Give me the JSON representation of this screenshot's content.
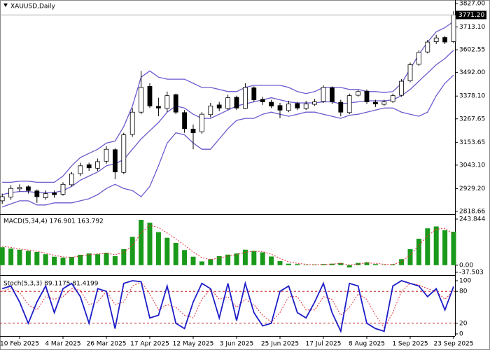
{
  "chart_data": [
    {
      "type": "candlestick",
      "title": "XAUUSD,Daily",
      "categories": [
        null,
        null,
        "10 Feb 2025",
        null,
        null,
        null,
        null,
        "4 Mar 2025",
        null,
        null,
        null,
        null,
        "26 Mar 2025",
        null,
        null,
        null,
        null,
        "17 Apr 2025",
        null,
        null,
        null,
        null,
        "12 May 2025",
        null,
        null,
        null,
        null,
        "3 Jun 2025",
        null,
        null,
        null,
        null,
        "25 Jun 2025",
        null,
        null,
        null,
        null,
        "17 Jul 2025",
        null,
        null,
        null,
        null,
        "8 Aug 2025",
        null,
        null,
        null,
        null,
        "1 Sep 2025",
        null,
        null,
        null,
        null,
        "23 Sep 2025"
      ],
      "open": [
        2870,
        2888,
        2928,
        2938,
        2918,
        2885,
        2908,
        2902,
        2948,
        3002,
        3045,
        3028,
        3062,
        3118,
        3008,
        3192,
        3300,
        3425,
        3328,
        3318,
        3385,
        3298,
        3218,
        3205,
        3288,
        3335,
        3318,
        3372,
        3318,
        3418,
        3362,
        3348,
        3332,
        3308,
        3342,
        3318,
        3338,
        3352,
        3418,
        3348,
        3298,
        3382,
        3402,
        3348,
        3338,
        3352,
        3382,
        3452,
        3532,
        3592,
        3642,
        3662,
        3642
      ],
      "high": [
        2905,
        2945,
        2950,
        2945,
        2925,
        2920,
        2920,
        2960,
        3010,
        3055,
        3055,
        3075,
        3135,
        3125,
        3200,
        3320,
        3500,
        3440,
        3370,
        3400,
        3390,
        3310,
        3240,
        3300,
        3345,
        3350,
        3385,
        3380,
        3440,
        3425,
        3375,
        3360,
        3345,
        3355,
        3350,
        3355,
        3365,
        3430,
        3425,
        3360,
        3390,
        3410,
        3410,
        3360,
        3360,
        3390,
        3460,
        3540,
        3600,
        3650,
        3675,
        3670,
        3790
      ],
      "low": [
        2855,
        2875,
        2915,
        2905,
        2860,
        2875,
        2885,
        2895,
        2940,
        2990,
        3015,
        3015,
        3050,
        2975,
        3000,
        3180,
        3290,
        3320,
        3280,
        3300,
        3290,
        3200,
        3120,
        3195,
        3275,
        3305,
        3310,
        3310,
        3315,
        3350,
        3335,
        3320,
        3270,
        3300,
        3310,
        3310,
        3330,
        3345,
        3340,
        3280,
        3290,
        3375,
        3340,
        3325,
        3330,
        3345,
        3375,
        3445,
        3525,
        3585,
        3630,
        3630,
        3635
      ],
      "close": [
        2890,
        2930,
        2935,
        2920,
        2890,
        2905,
        2900,
        2950,
        3000,
        3040,
        3030,
        3060,
        3120,
        3010,
        3190,
        3300,
        3420,
        3330,
        3320,
        3380,
        3300,
        3220,
        3200,
        3290,
        3330,
        3320,
        3370,
        3320,
        3420,
        3360,
        3350,
        3330,
        3310,
        3340,
        3320,
        3340,
        3350,
        3420,
        3350,
        3300,
        3380,
        3400,
        3350,
        3340,
        3350,
        3380,
        3450,
        3530,
        3590,
        3640,
        3660,
        3640,
        3771.2
      ],
      "bands": {
        "color": "#6a5acd",
        "upper": [
          2960,
          2960,
          2965,
          2965,
          2960,
          2960,
          2960,
          2990,
          3040,
          3080,
          3100,
          3120,
          3150,
          3160,
          3230,
          3330,
          3470,
          3500,
          3470,
          3460,
          3460,
          3460,
          3440,
          3420,
          3420,
          3410,
          3400,
          3400,
          3420,
          3430,
          3430,
          3430,
          3430,
          3420,
          3400,
          3390,
          3400,
          3420,
          3420,
          3420,
          3410,
          3410,
          3400,
          3400,
          3395,
          3400,
          3440,
          3510,
          3580,
          3640,
          3690,
          3710,
          3740
        ],
        "middle": [
          2900,
          2910,
          2915,
          2915,
          2910,
          2910,
          2910,
          2920,
          2940,
          2970,
          2990,
          3010,
          3040,
          3050,
          3070,
          3120,
          3170,
          3210,
          3250,
          3300,
          3330,
          3320,
          3290,
          3270,
          3270,
          3290,
          3310,
          3330,
          3340,
          3350,
          3360,
          3370,
          3360,
          3350,
          3345,
          3345,
          3345,
          3350,
          3350,
          3340,
          3345,
          3350,
          3355,
          3355,
          3355,
          3360,
          3380,
          3410,
          3450,
          3490,
          3530,
          3560,
          3600
        ],
        "lower": [
          2840,
          2855,
          2870,
          2870,
          2850,
          2850,
          2860,
          2860,
          2860,
          2870,
          2880,
          2900,
          2930,
          2950,
          2930,
          2920,
          2890,
          2940,
          3040,
          3150,
          3200,
          3190,
          3150,
          3120,
          3120,
          3170,
          3220,
          3260,
          3270,
          3270,
          3290,
          3300,
          3290,
          3280,
          3290,
          3300,
          3300,
          3290,
          3280,
          3270,
          3285,
          3290,
          3300,
          3310,
          3320,
          3320,
          3300,
          3290,
          3280,
          3300,
          3380,
          3440,
          3480
        ]
      },
      "current_price": {
        "value": 3771.2,
        "label": "3771.20"
      },
      "ylim": [
        2818.66,
        3827.0
      ],
      "yticks": [
        2818.66,
        {
          "value": 2929.2,
          "label": "2929.20"
        },
        {
          "value": 3043.1,
          "label": "3043.10"
        },
        3153.65,
        3267.65,
        {
          "value": 3378.1,
          "label": "3378.10"
        },
        {
          "value": 3492,
          "label": "3492.00"
        },
        3602.55,
        {
          "value": 3713.1,
          "label": "3713.10"
        },
        {
          "value": 3827,
          "label": "3827.00"
        }
      ]
    },
    {
      "type": "macd",
      "title": "MACD(5,34,4) 176.901 163.792",
      "color": "#1a9a1a",
      "signal_color": "#e0303a",
      "values": [
        95,
        88,
        82,
        76,
        70,
        58,
        45,
        40,
        44,
        55,
        62,
        58,
        66,
        48,
        85,
        150,
        240,
        225,
        175,
        145,
        118,
        80,
        45,
        20,
        32,
        48,
        56,
        62,
        82,
        76,
        68,
        46,
        22,
        8,
        6,
        2,
        3,
        6,
        8,
        12,
        -12,
        12,
        16,
        6,
        2,
        5,
        32,
        85,
        140,
        195,
        205,
        185,
        176.901
      ],
      "signal": [
        100,
        94,
        86,
        80,
        74,
        64,
        52,
        44,
        42,
        48,
        56,
        60,
        62,
        56,
        68,
        105,
        170,
        210,
        200,
        170,
        140,
        105,
        70,
        40,
        30,
        38,
        48,
        56,
        68,
        74,
        72,
        58,
        36,
        18,
        10,
        5,
        3,
        4,
        6,
        9,
        2,
        6,
        12,
        10,
        5,
        4,
        18,
        55,
        105,
        155,
        190,
        195,
        163.792
      ],
      "ylim": [
        -37.503,
        243.844
      ],
      "yticks": [
        243.844,
        {
          "value": 0,
          "label": "0.00"
        },
        -37.503
      ]
    },
    {
      "type": "stochastic",
      "title": "Stoch(5,3,3) 89.1175 81.4199",
      "color": "#1c1cc8",
      "signal_color": "#e0303a",
      "k": [
        85,
        90,
        60,
        20,
        60,
        90,
        40,
        85,
        95,
        70,
        20,
        85,
        80,
        10,
        95,
        100,
        98,
        30,
        35,
        90,
        20,
        10,
        60,
        95,
        85,
        30,
        95,
        25,
        95,
        40,
        15,
        20,
        80,
        90,
        40,
        30,
        60,
        95,
        40,
        5,
        95,
        90,
        20,
        10,
        5,
        90,
        100,
        95,
        90,
        70,
        85,
        45,
        89.1175
      ],
      "d": [
        80,
        86,
        78,
        55,
        45,
        70,
        65,
        70,
        85,
        82,
        55,
        60,
        80,
        55,
        60,
        90,
        98,
        75,
        45,
        55,
        50,
        35,
        30,
        65,
        85,
        65,
        70,
        50,
        65,
        55,
        35,
        22,
        40,
        70,
        70,
        45,
        45,
        70,
        65,
        35,
        50,
        75,
        65,
        35,
        12,
        40,
        80,
        95,
        92,
        85,
        80,
        65,
        81.4199
      ],
      "levels": [
        80,
        20
      ],
      "ylim": [
        0,
        100
      ],
      "yticks": [
        100,
        80,
        20,
        0
      ]
    }
  ]
}
